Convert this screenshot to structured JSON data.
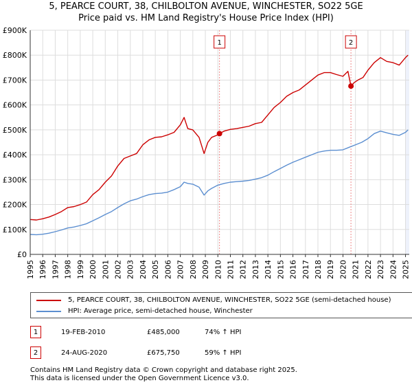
{
  "title_line1": "5, PEARCE COURT, 38, CHILBOLTON AVENUE, WINCHESTER, SO22 5GE",
  "title_line2": "Price paid vs. HM Land Registry's House Price Index (HPI)",
  "chart_data": {
    "type": "line",
    "x_label": "",
    "y_label": "",
    "xlim": [
      1995,
      2025.3
    ],
    "ylim": [
      0,
      900000
    ],
    "grid": true,
    "y_ticks": [
      {
        "value": 0,
        "label": "£0"
      },
      {
        "value": 100000,
        "label": "£100K"
      },
      {
        "value": 200000,
        "label": "£200K"
      },
      {
        "value": 300000,
        "label": "£300K"
      },
      {
        "value": 400000,
        "label": "£400K"
      },
      {
        "value": 500000,
        "label": "£500K"
      },
      {
        "value": 600000,
        "label": "£600K"
      },
      {
        "value": 700000,
        "label": "£700K"
      },
      {
        "value": 800000,
        "label": "£800K"
      },
      {
        "value": 900000,
        "label": "£900K"
      }
    ],
    "x_ticks": [
      "1995",
      "1996",
      "1997",
      "1998",
      "1999",
      "2000",
      "2001",
      "2002",
      "2003",
      "2004",
      "2005",
      "2006",
      "2007",
      "2008",
      "2009",
      "2010",
      "2011",
      "2012",
      "2013",
      "2014",
      "2015",
      "2016",
      "2017",
      "2018",
      "2019",
      "2020",
      "2021",
      "2022",
      "2023",
      "2024",
      "2025"
    ],
    "series": [
      {
        "name": "5, PEARCE COURT, 38, CHILBOLTON AVENUE, WINCHESTER, SO22 5GE (semi-detached house)",
        "color": "#cc0000",
        "x": [
          1995.0,
          1995.5,
          1996.0,
          1996.5,
          1997.0,
          1997.5,
          1998.0,
          1998.5,
          1999.0,
          1999.5,
          2000.0,
          2000.5,
          2001.0,
          2001.5,
          2002.0,
          2002.5,
          2003.0,
          2003.5,
          2004.0,
          2004.5,
          2005.0,
          2005.5,
          2006.0,
          2006.5,
          2007.0,
          2007.3,
          2007.6,
          2008.0,
          2008.5,
          2008.9,
          2009.2,
          2009.5,
          2010.0,
          2010.13,
          2010.5,
          2011.0,
          2011.5,
          2012.0,
          2012.5,
          2013.0,
          2013.5,
          2014.0,
          2014.5,
          2015.0,
          2015.5,
          2016.0,
          2016.5,
          2017.0,
          2017.5,
          2018.0,
          2018.5,
          2019.0,
          2019.5,
          2020.0,
          2020.4,
          2020.64,
          2020.9,
          2021.2,
          2021.6,
          2022.0,
          2022.5,
          2023.0,
          2023.5,
          2024.0,
          2024.5,
          2025.0,
          2025.2
        ],
        "values": [
          140000,
          138000,
          143000,
          150000,
          160000,
          172000,
          188000,
          192000,
          200000,
          210000,
          240000,
          260000,
          290000,
          315000,
          355000,
          385000,
          395000,
          405000,
          440000,
          460000,
          470000,
          472000,
          480000,
          490000,
          520000,
          550000,
          505000,
          500000,
          470000,
          405000,
          450000,
          470000,
          480000,
          485000,
          495000,
          502000,
          505000,
          510000,
          515000,
          525000,
          530000,
          560000,
          590000,
          610000,
          635000,
          650000,
          660000,
          680000,
          700000,
          720000,
          730000,
          730000,
          722000,
          715000,
          735000,
          675750,
          690000,
          700000,
          710000,
          740000,
          770000,
          790000,
          775000,
          770000,
          760000,
          790000,
          800000
        ]
      },
      {
        "name": "HPI: Average price, semi-detached house, Winchester",
        "color": "#5b8ed0",
        "x": [
          1995.0,
          1995.5,
          1996.0,
          1996.5,
          1997.0,
          1997.5,
          1998.0,
          1998.5,
          1999.0,
          1999.5,
          2000.0,
          2000.5,
          2001.0,
          2001.5,
          2002.0,
          2002.5,
          2003.0,
          2003.5,
          2004.0,
          2004.5,
          2005.0,
          2005.5,
          2006.0,
          2006.5,
          2007.0,
          2007.3,
          2007.6,
          2008.0,
          2008.5,
          2008.9,
          2009.2,
          2009.5,
          2010.0,
          2010.5,
          2011.0,
          2011.5,
          2012.0,
          2012.5,
          2013.0,
          2013.5,
          2014.0,
          2014.5,
          2015.0,
          2015.5,
          2016.0,
          2016.5,
          2017.0,
          2017.5,
          2018.0,
          2018.5,
          2019.0,
          2019.5,
          2020.0,
          2020.5,
          2021.0,
          2021.5,
          2022.0,
          2022.5,
          2023.0,
          2023.5,
          2024.0,
          2024.5,
          2025.0,
          2025.2
        ],
        "values": [
          80000,
          79000,
          81000,
          85000,
          91000,
          98000,
          106000,
          110000,
          116000,
          123000,
          135000,
          147000,
          160000,
          172000,
          188000,
          203000,
          215000,
          222000,
          232000,
          240000,
          244000,
          246000,
          250000,
          260000,
          272000,
          290000,
          285000,
          282000,
          270000,
          238000,
          255000,
          265000,
          278000,
          285000,
          290000,
          292000,
          294000,
          297000,
          302000,
          308000,
          318000,
          332000,
          345000,
          358000,
          370000,
          380000,
          390000,
          400000,
          410000,
          415000,
          418000,
          418000,
          420000,
          430000,
          440000,
          450000,
          465000,
          485000,
          495000,
          488000,
          482000,
          478000,
          490000,
          500000
        ]
      }
    ],
    "sales": [
      {
        "label": "1",
        "x": 2010.13,
        "price": 485000
      },
      {
        "label": "2",
        "x": 2020.64,
        "price": 675750
      }
    ]
  },
  "legend": {
    "property": "5, PEARCE COURT, 38, CHILBOLTON AVENUE, WINCHESTER, SO22 5GE (semi-detached house)",
    "hpi": "HPI: Average price, semi-detached house, Winchester"
  },
  "annotations": [
    {
      "label": "1",
      "date": "19-FEB-2010",
      "price": "£485,000",
      "hpi": "74% ↑ HPI"
    },
    {
      "label": "2",
      "date": "24-AUG-2020",
      "price": "£675,750",
      "hpi": "59% ↑ HPI"
    }
  ],
  "footer_line1": "Contains HM Land Registry data © Crown copyright and database right 2025.",
  "footer_line2": "This data is licensed under the Open Government Licence v3.0.",
  "colors": {
    "property": "#cc0000",
    "hpi": "#5b8ed0",
    "grid": "#dddddd",
    "marker_line": "#e88",
    "shade": "#eef2fb"
  }
}
